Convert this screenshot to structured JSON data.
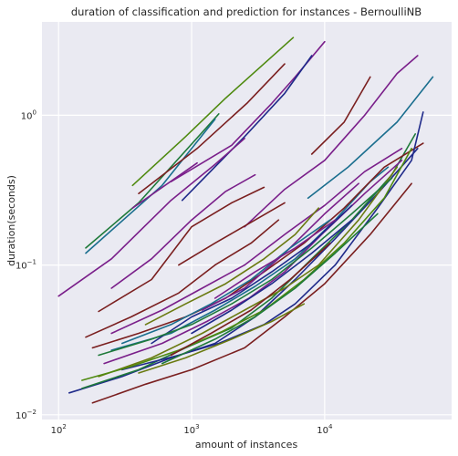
{
  "chart_data": {
    "type": "line",
    "title": "duration of classification and prediction for instances - BernoulliNB",
    "xlabel": "amount of instances",
    "ylabel": "duration(seconds)",
    "xscale": "log",
    "yscale": "log",
    "xlim": [
      75,
      90000
    ],
    "ylim": [
      0.0093,
      4.2
    ],
    "grid": true,
    "x_ticks": [
      {
        "value": 100,
        "base": "10",
        "exp": "2"
      },
      {
        "value": 1000,
        "base": "10",
        "exp": "3"
      },
      {
        "value": 10000,
        "base": "10",
        "exp": "4"
      }
    ],
    "y_ticks": [
      {
        "value": 0.01,
        "base": "10",
        "exp": "−2"
      },
      {
        "value": 0.1,
        "base": "10",
        "exp": "−1"
      },
      {
        "value": 1,
        "base": "10",
        "exp": "0"
      }
    ],
    "series": [
      {
        "color": "#4f8a10",
        "points": [
          [
            360,
            0.34
          ],
          [
            900,
            0.72
          ],
          [
            1800,
            1.3
          ],
          [
            5800,
            3.3
          ]
        ]
      },
      {
        "color": "#1f7a3a",
        "points": [
          [
            160,
            0.13
          ],
          [
            400,
            0.26
          ],
          [
            1600,
            1.02
          ]
        ]
      },
      {
        "color": "#1a6e8e",
        "points": [
          [
            160,
            0.12
          ],
          [
            600,
            0.34
          ],
          [
            1500,
            0.94
          ]
        ]
      },
      {
        "color": "#7a1f1f",
        "points": [
          [
            400,
            0.3
          ],
          [
            1100,
            0.6
          ],
          [
            2600,
            1.2
          ],
          [
            5000,
            2.2
          ]
        ]
      },
      {
        "color": "#7a1f8a",
        "points": [
          [
            360,
            0.24
          ],
          [
            1100,
            0.48
          ]
        ]
      },
      {
        "color": "#7a1f8a",
        "points": [
          [
            700,
            0.36
          ],
          [
            2000,
            0.63
          ],
          [
            4000,
            1.2
          ],
          [
            6000,
            1.8
          ],
          [
            10000,
            3.1
          ]
        ]
      },
      {
        "color": "#1f2a8a",
        "points": [
          [
            850,
            0.27
          ],
          [
            2500,
            0.72
          ],
          [
            5000,
            1.4
          ],
          [
            8000,
            2.5
          ]
        ]
      },
      {
        "color": "#7a1f8a",
        "points": [
          [
            2500,
            0.18
          ],
          [
            5000,
            0.32
          ],
          [
            10000,
            0.5
          ],
          [
            20000,
            1.0
          ],
          [
            35000,
            1.9
          ],
          [
            50000,
            2.5
          ]
        ]
      },
      {
        "color": "#1a6e8e",
        "points": [
          [
            7500,
            0.28
          ],
          [
            15000,
            0.45
          ],
          [
            35000,
            0.9
          ],
          [
            65000,
            1.8
          ]
        ]
      },
      {
        "color": "#7a1f1f",
        "points": [
          [
            8000,
            0.55
          ],
          [
            14000,
            0.9
          ],
          [
            22000,
            1.8
          ]
        ]
      },
      {
        "color": "#7a1f8a",
        "points": [
          [
            100,
            0.062
          ],
          [
            250,
            0.11
          ],
          [
            700,
            0.27
          ],
          [
            1500,
            0.47
          ],
          [
            2500,
            0.7
          ]
        ]
      },
      {
        "color": "#7a1f8a",
        "points": [
          [
            250,
            0.07
          ],
          [
            500,
            0.11
          ],
          [
            1000,
            0.2
          ],
          [
            1800,
            0.31
          ],
          [
            3000,
            0.4
          ]
        ]
      },
      {
        "color": "#7a1f1f",
        "points": [
          [
            200,
            0.049
          ],
          [
            500,
            0.08
          ],
          [
            1000,
            0.18
          ],
          [
            2000,
            0.26
          ],
          [
            3500,
            0.33
          ]
        ]
      },
      {
        "color": "#1f2a8a",
        "points": [
          [
            120,
            0.014
          ],
          [
            300,
            0.018
          ],
          [
            700,
            0.024
          ],
          [
            1500,
            0.03
          ],
          [
            3000,
            0.045
          ],
          [
            6000,
            0.08
          ],
          [
            12000,
            0.15
          ],
          [
            25000,
            0.3
          ],
          [
            50000,
            0.6
          ]
        ]
      },
      {
        "color": "#1f7a3a",
        "points": [
          [
            150,
            0.015
          ],
          [
            400,
            0.02
          ],
          [
            900,
            0.028
          ],
          [
            2000,
            0.038
          ],
          [
            4000,
            0.06
          ],
          [
            8000,
            0.11
          ],
          [
            16000,
            0.2
          ],
          [
            32000,
            0.4
          ],
          [
            48000,
            0.75
          ]
        ]
      },
      {
        "color": "#7a1f1f",
        "points": [
          [
            180,
            0.012
          ],
          [
            450,
            0.016
          ],
          [
            1000,
            0.02
          ],
          [
            2500,
            0.028
          ],
          [
            5000,
            0.045
          ],
          [
            10000,
            0.075
          ],
          [
            22000,
            0.16
          ],
          [
            45000,
            0.35
          ]
        ]
      },
      {
        "color": "#6a7a10",
        "points": [
          [
            200,
            0.018
          ],
          [
            500,
            0.024
          ],
          [
            1200,
            0.035
          ],
          [
            2500,
            0.05
          ],
          [
            5000,
            0.07
          ],
          [
            9000,
            0.1
          ],
          [
            18000,
            0.2
          ],
          [
            35000,
            0.45
          ]
        ]
      },
      {
        "color": "#7a1f8a",
        "points": [
          [
            220,
            0.022
          ],
          [
            600,
            0.03
          ],
          [
            1300,
            0.042
          ],
          [
            2700,
            0.06
          ],
          [
            5000,
            0.09
          ],
          [
            9500,
            0.16
          ],
          [
            20000,
            0.3
          ],
          [
            38000,
            0.5
          ]
        ]
      },
      {
        "color": "#1a6e8e",
        "points": [
          [
            250,
            0.027
          ],
          [
            700,
            0.035
          ],
          [
            1500,
            0.05
          ],
          [
            3000,
            0.072
          ],
          [
            6000,
            0.11
          ],
          [
            12000,
            0.2
          ],
          [
            22000,
            0.36
          ],
          [
            30000,
            0.45
          ]
        ]
      },
      {
        "color": "#7a1f1f",
        "points": [
          [
            180,
            0.028
          ],
          [
            400,
            0.035
          ],
          [
            900,
            0.045
          ],
          [
            1800,
            0.06
          ],
          [
            3500,
            0.09
          ],
          [
            7000,
            0.14
          ],
          [
            14000,
            0.24
          ],
          [
            28000,
            0.45
          ],
          [
            55000,
            0.65
          ]
        ]
      },
      {
        "color": "#1f2a8a",
        "points": [
          [
            300,
            0.02
          ],
          [
            800,
            0.025
          ],
          [
            1600,
            0.03
          ],
          [
            3500,
            0.04
          ],
          [
            6000,
            0.055
          ],
          [
            12000,
            0.1
          ],
          [
            25000,
            0.24
          ],
          [
            45000,
            0.5
          ],
          [
            55000,
            1.05
          ]
        ]
      },
      {
        "color": "#4f8a10",
        "points": [
          [
            150,
            0.017
          ],
          [
            350,
            0.021
          ],
          [
            800,
            0.027
          ],
          [
            1700,
            0.036
          ],
          [
            3500,
            0.05
          ],
          [
            7000,
            0.08
          ],
          [
            14000,
            0.14
          ],
          [
            28000,
            0.28
          ],
          [
            45000,
            0.6
          ]
        ]
      },
      {
        "color": "#7a1f8a",
        "points": [
          [
            250,
            0.035
          ],
          [
            600,
            0.05
          ],
          [
            1200,
            0.07
          ],
          [
            2500,
            0.1
          ],
          [
            5000,
            0.16
          ],
          [
            10000,
            0.25
          ],
          [
            20000,
            0.42
          ],
          [
            38000,
            0.6
          ]
        ]
      },
      {
        "color": "#7a1f1f",
        "points": [
          [
            160,
            0.033
          ],
          [
            350,
            0.045
          ],
          [
            800,
            0.065
          ],
          [
            1500,
            0.1
          ],
          [
            2800,
            0.14
          ],
          [
            4500,
            0.2
          ]
        ]
      },
      {
        "color": "#6a7a10",
        "points": [
          [
            450,
            0.04
          ],
          [
            900,
            0.055
          ],
          [
            1800,
            0.075
          ],
          [
            3500,
            0.11
          ],
          [
            6000,
            0.16
          ],
          [
            9000,
            0.24
          ]
        ]
      },
      {
        "color": "#1f7a3a",
        "points": [
          [
            600,
            0.022
          ],
          [
            1500,
            0.032
          ],
          [
            3000,
            0.045
          ],
          [
            6000,
            0.07
          ],
          [
            12000,
            0.12
          ],
          [
            25000,
            0.22
          ]
        ]
      },
      {
        "color": "#7a1f8a",
        "points": [
          [
            1200,
            0.05
          ],
          [
            2500,
            0.07
          ],
          [
            5000,
            0.12
          ],
          [
            10000,
            0.22
          ],
          [
            18000,
            0.35
          ]
        ]
      },
      {
        "color": "#1f2a8a",
        "points": [
          [
            500,
            0.03
          ],
          [
            1000,
            0.045
          ],
          [
            2000,
            0.06
          ],
          [
            4000,
            0.09
          ],
          [
            8000,
            0.14
          ],
          [
            16000,
            0.25
          ]
        ]
      },
      {
        "color": "#7a1f1f",
        "points": [
          [
            700,
            0.025
          ],
          [
            1400,
            0.035
          ],
          [
            2800,
            0.05
          ],
          [
            5500,
            0.08
          ],
          [
            11000,
            0.14
          ]
        ]
      },
      {
        "color": "#6a7a10",
        "points": [
          [
            400,
            0.019
          ],
          [
            900,
            0.024
          ],
          [
            2000,
            0.032
          ],
          [
            4000,
            0.042
          ],
          [
            7000,
            0.055
          ]
        ]
      },
      {
        "color": "#1a6e8e",
        "points": [
          [
            300,
            0.03
          ],
          [
            700,
            0.04
          ],
          [
            1400,
            0.055
          ],
          [
            2800,
            0.08
          ],
          [
            5500,
            0.13
          ],
          [
            11000,
            0.2
          ]
        ]
      },
      {
        "color": "#7a1f8a",
        "points": [
          [
            1500,
            0.06
          ],
          [
            3000,
            0.09
          ],
          [
            6000,
            0.13
          ],
          [
            12000,
            0.2
          ]
        ]
      },
      {
        "color": "#1f7a3a",
        "points": [
          [
            200,
            0.025
          ],
          [
            500,
            0.032
          ],
          [
            1000,
            0.04
          ],
          [
            2000,
            0.055
          ],
          [
            4000,
            0.08
          ],
          [
            8000,
            0.13
          ],
          [
            16000,
            0.22
          ],
          [
            32000,
            0.38
          ]
        ]
      },
      {
        "color": "#7a1f1f",
        "points": [
          [
            800,
            0.1
          ],
          [
            1500,
            0.14
          ],
          [
            3000,
            0.2
          ],
          [
            5000,
            0.26
          ]
        ]
      },
      {
        "color": "#1f2a8a",
        "points": [
          [
            1000,
            0.035
          ],
          [
            2000,
            0.05
          ],
          [
            4000,
            0.075
          ],
          [
            8000,
            0.12
          ],
          [
            16000,
            0.2
          ]
        ]
      }
    ]
  }
}
